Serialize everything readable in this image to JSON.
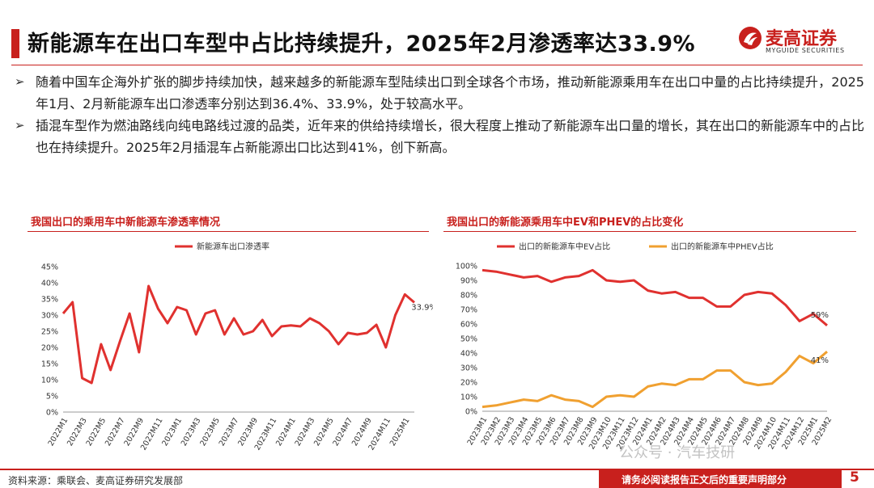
{
  "header": {
    "title": "新能源车在出口车型中占比持续提升，2025年2月渗透率达33.9%",
    "logo_cn": "麦高证券",
    "logo_en": "MYGUIDE SECURITIES"
  },
  "bullets": [
    {
      "marker": "➢",
      "text": "随着中国车企海外扩张的脚步持续加快，越来越多的新能源车型陆续出口到全球各个市场，推动新能源乘用车在出口中量的占比持续提升，2025年1月、2月新能源车出口渗透率分别达到36.4%、33.9%，处于较高水平。"
    },
    {
      "marker": "➢",
      "text": "插混车型作为燃油路线向纯电路线过渡的品类，近年来的供给持续增长，很大程度上推动了新能源车出口量的增长，其在出口的新能源车中的占比也在持续提升。2025年2月插混车占新能源出口比达到41%，创下新高。"
    }
  ],
  "footer": {
    "source": "资料来源：乘联会、麦高证券研究发展部",
    "disclaimer": "请务必阅读报告正文后的重要声明部分",
    "page": "5",
    "watermark": "公众号 · 汽车技研"
  },
  "colors": {
    "brand_red": "#c8201d",
    "series_red": "#e0312f",
    "series_orange": "#f0a030",
    "axis": "#999999"
  },
  "chart_data": [
    {
      "type": "line",
      "title": "我国出口的乘用车中新能源车渗透率情况",
      "legend_position": "top",
      "x": [
        "2022M1",
        "2022M2",
        "2022M3",
        "2022M4",
        "2022M5",
        "2022M6",
        "2022M7",
        "2022M8",
        "2022M9",
        "2022M10",
        "2022M11",
        "2022M12",
        "2023M1",
        "2023M2",
        "2023M3",
        "2023M4",
        "2023M5",
        "2023M6",
        "2023M7",
        "2023M8",
        "2023M9",
        "2023M10",
        "2023M11",
        "2023M12",
        "2024M1",
        "2024M2",
        "2024M3",
        "2024M4",
        "2024M5",
        "2024M6",
        "2024M7",
        "2024M8",
        "2024M9",
        "2024M10",
        "2024M11",
        "2024M12",
        "2025M1",
        "2025M2"
      ],
      "tick_labels": [
        "2022M1",
        "2022M3",
        "2022M5",
        "2022M7",
        "2022M9",
        "2022M11",
        "2023M1",
        "2023M3",
        "2023M5",
        "2023M7",
        "2023M9",
        "2023M11",
        "2024M1",
        "2024M3",
        "2024M5",
        "2024M7",
        "2024M9",
        "2024M11",
        "2025M1"
      ],
      "series": [
        {
          "name": "新能源车出口渗透率",
          "values": [
            30.5,
            34.0,
            10.5,
            9.0,
            21.0,
            13.0,
            22.0,
            30.5,
            18.5,
            39.0,
            32.0,
            27.5,
            32.5,
            31.5,
            24.0,
            30.5,
            31.5,
            24.0,
            29.0,
            24.0,
            25.0,
            28.5,
            23.5,
            26.5,
            26.8,
            26.5,
            29.0,
            27.5,
            25.0,
            21.0,
            24.5,
            24.0,
            24.5,
            27.0,
            20.0,
            30.0,
            36.4,
            33.9
          ]
        }
      ],
      "ylim": [
        0,
        45
      ],
      "yticks": [
        "0%",
        "5%",
        "10%",
        "15%",
        "20%",
        "25%",
        "30%",
        "35%",
        "40%",
        "45%"
      ],
      "end_label": "33.9%"
    },
    {
      "type": "line",
      "title": "我国出口的新能源乘用车中EV和PHEV的占比变化",
      "legend_position": "top",
      "x": [
        "2023M1",
        "2023M2",
        "2023M3",
        "2023M4",
        "2023M5",
        "2023M6",
        "2023M7",
        "2023M8",
        "2023M9",
        "2023M10",
        "2023M11",
        "2023M12",
        "2024M1",
        "2024M2",
        "2024M3",
        "2024M4",
        "2024M5",
        "2024M6",
        "2024M7",
        "2024M8",
        "2024M9",
        "2024M10",
        "2024M11",
        "2024M12",
        "2025M1",
        "2025M2"
      ],
      "series": [
        {
          "name": "出口的新能源车中EV占比",
          "values": [
            97,
            96,
            94,
            92,
            93,
            89,
            92,
            93,
            97,
            90,
            89,
            90,
            83,
            81,
            82,
            78,
            78,
            72,
            72,
            80,
            82,
            81,
            73,
            62,
            67,
            59
          ]
        },
        {
          "name": "出口的新能源车中PHEV占比",
          "values": [
            3,
            4,
            6,
            8,
            7,
            11,
            8,
            7,
            3,
            10,
            11,
            10,
            17,
            19,
            18,
            22,
            22,
            28,
            28,
            20,
            18,
            19,
            27,
            38,
            33,
            41
          ]
        }
      ],
      "ylim": [
        0,
        100
      ],
      "yticks": [
        "0%",
        "10%",
        "20%",
        "30%",
        "40%",
        "50%",
        "60%",
        "70%",
        "80%",
        "90%",
        "100%"
      ],
      "end_labels": [
        "59%",
        "41%"
      ]
    }
  ]
}
